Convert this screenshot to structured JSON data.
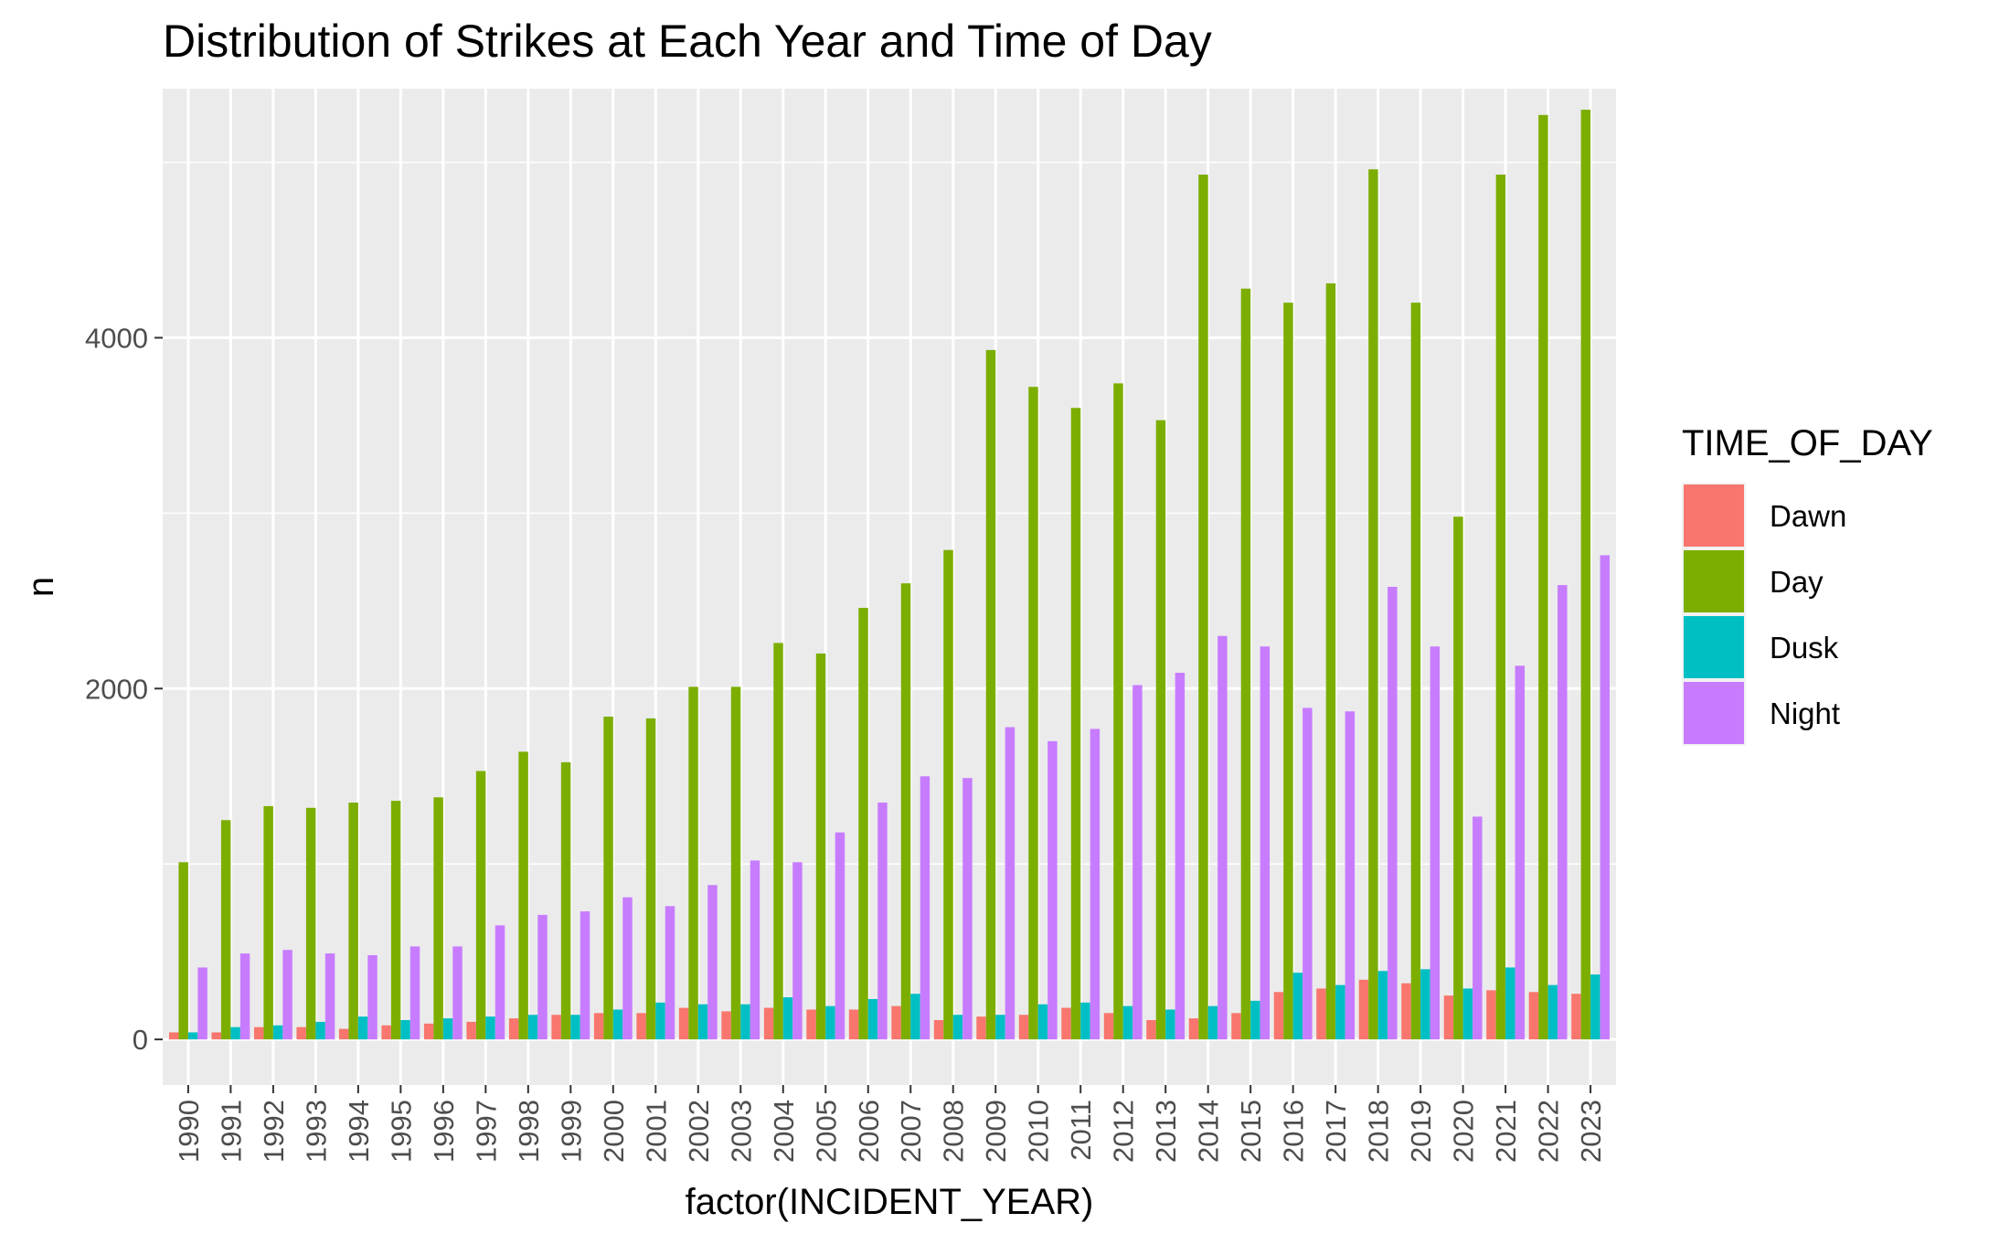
{
  "chart_data": {
    "type": "bar",
    "title": "Distribution of Strikes at Each Year and Time of Day",
    "xlabel": "factor(INCIDENT_YEAR)",
    "ylabel": "n",
    "ylim": [
      -260,
      5420
    ],
    "yticks": [
      0,
      2000,
      4000
    ],
    "grid": true,
    "legend": {
      "title": "TIME_OF_DAY",
      "position": "right"
    },
    "categories": [
      "1990",
      "1991",
      "1992",
      "1993",
      "1994",
      "1995",
      "1996",
      "1997",
      "1998",
      "1999",
      "2000",
      "2001",
      "2002",
      "2003",
      "2004",
      "2005",
      "2006",
      "2007",
      "2008",
      "2009",
      "2010",
      "2011",
      "2012",
      "2013",
      "2014",
      "2015",
      "2016",
      "2017",
      "2018",
      "2019",
      "2020",
      "2021",
      "2022",
      "2023"
    ],
    "series": [
      {
        "name": "Dawn",
        "color": "#F8766D",
        "values": [
          40,
          40,
          70,
          70,
          60,
          80,
          90,
          100,
          120,
          140,
          150,
          150,
          180,
          160,
          180,
          170,
          170,
          190,
          110,
          130,
          140,
          180,
          150,
          110,
          120,
          150,
          270,
          290,
          340,
          320,
          250,
          280,
          270,
          260
        ]
      },
      {
        "name": "Day",
        "color": "#7CAE00",
        "values": [
          1010,
          1250,
          1330,
          1320,
          1350,
          1360,
          1380,
          1530,
          1640,
          1580,
          1840,
          1830,
          2010,
          2010,
          2260,
          2200,
          2460,
          2600,
          2790,
          3930,
          3720,
          3600,
          3740,
          3530,
          4930,
          4280,
          4200,
          4310,
          4960,
          4200,
          2980,
          4930,
          5270,
          5300
        ]
      },
      {
        "name": "Dusk",
        "color": "#00BFC4",
        "values": [
          40,
          70,
          80,
          100,
          130,
          110,
          120,
          130,
          140,
          140,
          170,
          210,
          200,
          200,
          240,
          190,
          230,
          260,
          140,
          140,
          200,
          210,
          190,
          170,
          190,
          220,
          380,
          310,
          390,
          400,
          290,
          410,
          310,
          370
        ]
      },
      {
        "name": "Night",
        "color": "#C77CFF",
        "values": [
          410,
          490,
          510,
          490,
          480,
          530,
          530,
          650,
          710,
          730,
          810,
          760,
          880,
          1020,
          1010,
          1180,
          1350,
          1500,
          1490,
          1780,
          1700,
          1770,
          2020,
          2090,
          2300,
          2240,
          1890,
          1870,
          2580,
          2240,
          1270,
          2130,
          2590,
          2760
        ]
      }
    ]
  }
}
